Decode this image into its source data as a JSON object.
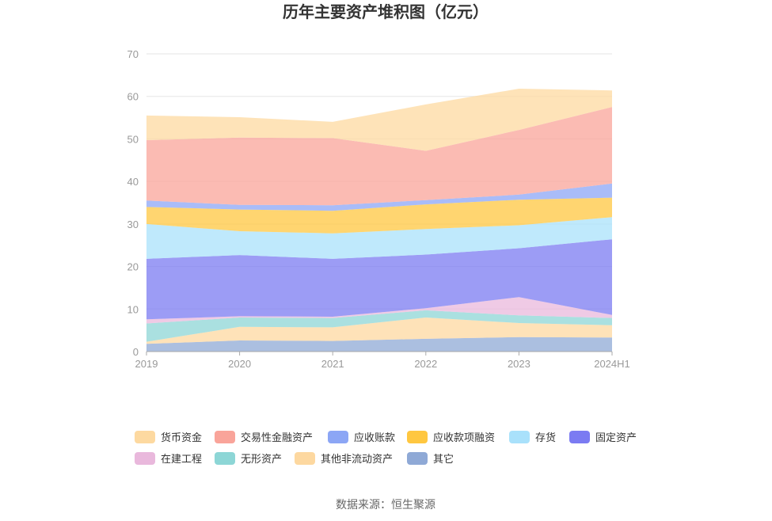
{
  "chart_data": {
    "type": "area",
    "stacked": true,
    "title": "历年主要资产堆积图（亿元）",
    "categories": [
      "2019",
      "2020",
      "2021",
      "2022",
      "2023",
      "2024H1"
    ],
    "ylim": [
      0,
      70
    ],
    "yticks": [
      "0",
      "10",
      "20",
      "30",
      "40",
      "50",
      "60",
      "70"
    ],
    "grid": true,
    "legend_position": "bottom",
    "series": [
      {
        "name": "其它",
        "color": "#8fa9d6",
        "values": [
          1.8,
          2.6,
          2.5,
          3.0,
          3.4,
          3.3
        ]
      },
      {
        "name": "其他非流动资产",
        "color": "#fdd8a0",
        "values": [
          0.5,
          3.2,
          3.2,
          5.0,
          3.3,
          2.9
        ]
      },
      {
        "name": "无形资产",
        "color": "#8dd6d6",
        "values": [
          4.3,
          2.2,
          2.2,
          1.7,
          1.8,
          1.7
        ]
      },
      {
        "name": "在建工程",
        "color": "#e9b8dc",
        "values": [
          1.0,
          0.3,
          0.3,
          0.5,
          4.3,
          0.7
        ]
      },
      {
        "name": "固定资产",
        "color": "#7b7bf2",
        "values": [
          14.2,
          14.4,
          13.6,
          12.6,
          11.5,
          17.8
        ]
      },
      {
        "name": "存货",
        "color": "#a9e1fb",
        "values": [
          8.2,
          5.6,
          6.0,
          6.0,
          5.4,
          5.2
        ]
      },
      {
        "name": "应收款项融资",
        "color": "#ffc740",
        "values": [
          4.0,
          5.1,
          5.3,
          5.8,
          6.0,
          4.6
        ]
      },
      {
        "name": "应收账款",
        "color": "#8ca6f5",
        "values": [
          1.5,
          1.1,
          1.3,
          1.0,
          1.2,
          3.3
        ]
      },
      {
        "name": "交易性金融资产",
        "color": "#f9a49a",
        "values": [
          14.2,
          15.8,
          15.8,
          11.6,
          15.2,
          18.0
        ]
      },
      {
        "name": "货币资金",
        "color": "#fdd9a0",
        "values": [
          5.8,
          4.8,
          3.8,
          10.9,
          9.7,
          3.9
        ]
      }
    ],
    "legend_order": [
      "货币资金",
      "交易性金融资产",
      "应收账款",
      "应收款项融资",
      "存货",
      "固定资产",
      "在建工程",
      "无形资产",
      "其他非流动资产",
      "其它"
    ]
  },
  "source_text": "数据来源：恒生聚源"
}
